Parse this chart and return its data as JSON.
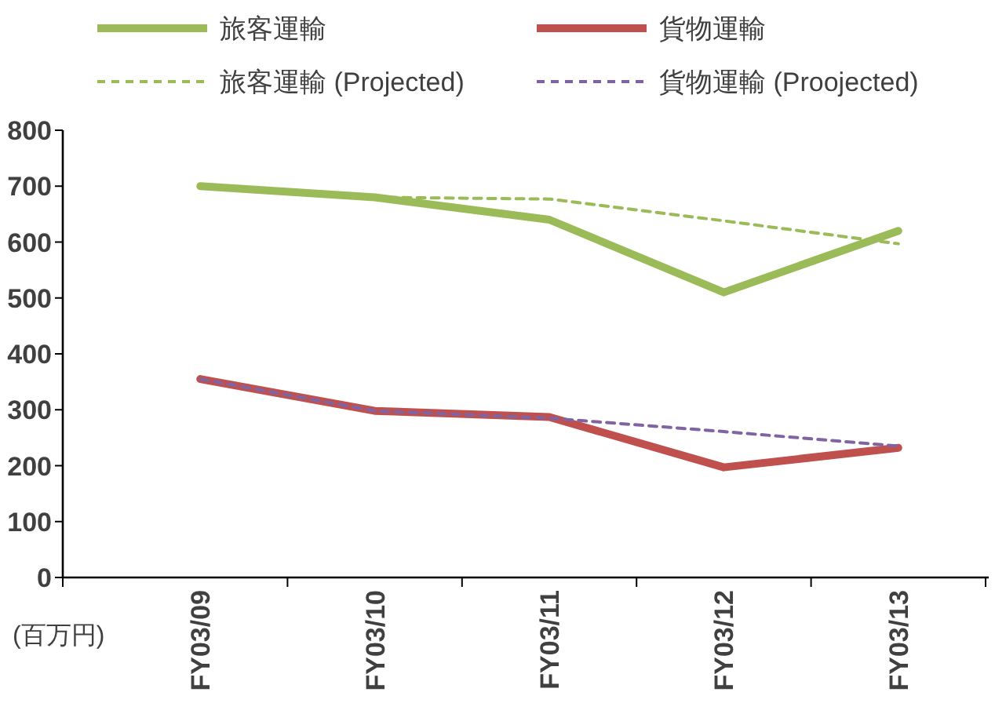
{
  "chart_data": {
    "type": "line",
    "categories": [
      "FY03/09",
      "FY03/10",
      "FY03/11",
      "FY03/12",
      "FY03/13"
    ],
    "series": [
      {
        "name": "旅客運輸",
        "color": "#9bbb59",
        "values": [
          700,
          680,
          640,
          510,
          620
        ],
        "line_style": "solid"
      },
      {
        "name": "貨物運輸",
        "color": "#c0504d",
        "values": [
          355,
          298,
          287,
          197,
          232
        ],
        "line_style": "solid"
      },
      {
        "name": "旅客運輸 (Projected)",
        "color": "#9bbb59",
        "values": [
          null,
          680,
          677,
          638,
          597
        ],
        "line_style": "dashed"
      },
      {
        "name": "貨物運輸 (Proojected)",
        "color": "#8064a2",
        "values": [
          355,
          298,
          285,
          261,
          235
        ],
        "line_style": "dashed"
      }
    ],
    "ylim": [
      0,
      800
    ],
    "yticks": [
      0,
      100,
      200,
      300,
      400,
      500,
      600,
      700,
      800
    ],
    "grid": false,
    "legend": "top",
    "marker": "none",
    "annotations": [
      "(百万円)"
    ]
  }
}
